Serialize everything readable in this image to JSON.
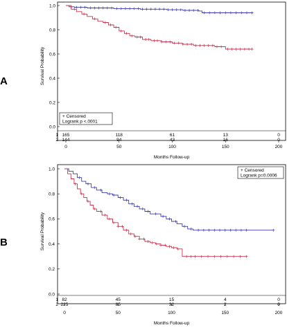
{
  "colors": {
    "group1": "#3b3bb0",
    "group2": "#c8324e",
    "frame": "#000000"
  },
  "chart_data": [
    {
      "panel": "A",
      "type": "line",
      "subtype": "kaplan-meier",
      "xlabel": "Months Follow-up",
      "ylabel": "Survival Probability",
      "xlim": [
        0,
        200
      ],
      "ylim": [
        0.0,
        1.0
      ],
      "xticks": [
        0,
        50,
        100,
        150,
        200
      ],
      "yticks": [
        "0.0",
        "0.2",
        "0.4",
        "0.6",
        "0.8",
        "1.0"
      ],
      "legend": {
        "position": "bottom-left",
        "lines": [
          "+ Censored",
          "Logrank p <.0001"
        ]
      },
      "series": [
        {
          "group": "1",
          "steps": [
            [
              0,
              1.0
            ],
            [
              3,
              0.99
            ],
            [
              8,
              0.985
            ],
            [
              20,
              0.98
            ],
            [
              45,
              0.975
            ],
            [
              70,
              0.97
            ],
            [
              95,
              0.965
            ],
            [
              110,
              0.96
            ],
            [
              125,
              0.955
            ],
            [
              128,
              0.94
            ],
            [
              175,
              0.94
            ]
          ],
          "censored": [
            5,
            10,
            14,
            18,
            23,
            27,
            31,
            35,
            39,
            43,
            48,
            52,
            56,
            60,
            64,
            68,
            72,
            76,
            80,
            84,
            88,
            92,
            96,
            100,
            104,
            108,
            112,
            116,
            120,
            124,
            130,
            135,
            140,
            145,
            150,
            155,
            160,
            165,
            170,
            175
          ]
        },
        {
          "group": "2",
          "steps": [
            [
              0,
              1.0
            ],
            [
              5,
              0.97
            ],
            [
              10,
              0.95
            ],
            [
              15,
              0.93
            ],
            [
              20,
              0.91
            ],
            [
              25,
              0.89
            ],
            [
              30,
              0.87
            ],
            [
              35,
              0.86
            ],
            [
              40,
              0.84
            ],
            [
              45,
              0.82
            ],
            [
              50,
              0.79
            ],
            [
              55,
              0.77
            ],
            [
              60,
              0.75
            ],
            [
              65,
              0.74
            ],
            [
              72,
              0.72
            ],
            [
              80,
              0.71
            ],
            [
              90,
              0.7
            ],
            [
              100,
              0.69
            ],
            [
              110,
              0.68
            ],
            [
              120,
              0.67
            ],
            [
              130,
              0.67
            ],
            [
              140,
              0.66
            ],
            [
              150,
              0.64
            ],
            [
              175,
              0.64
            ]
          ],
          "censored": [
            8,
            17,
            27,
            37,
            42,
            47,
            52,
            57,
            62,
            67,
            70,
            75,
            78,
            83,
            86,
            90,
            94,
            98,
            102,
            106,
            110,
            114,
            118,
            122,
            126,
            130,
            134,
            138,
            142,
            146,
            152,
            156,
            160,
            164,
            168,
            172,
            175
          ]
        }
      ],
      "risk_table": {
        "rows": [
          {
            "label": "1",
            "values": [
              "165",
              "118",
              "61",
              "13",
              "0"
            ]
          },
          {
            "label": "2",
            "values": [
              "144",
              "94",
              "43",
              "16",
              "0"
            ]
          }
        ]
      }
    },
    {
      "panel": "B",
      "type": "line",
      "subtype": "kaplan-meier",
      "xlabel": "Months Follow-up",
      "ylabel": "Survival Probability",
      "xlim": [
        0,
        200
      ],
      "ylim": [
        0.0,
        1.0
      ],
      "xticks": [
        0,
        50,
        100,
        150,
        200
      ],
      "yticks": [
        "0.0",
        "0.2",
        "0.4",
        "0.6",
        "0.8",
        "1.0"
      ],
      "legend": {
        "position": "top-right",
        "lines": [
          "+ Censored",
          "Logrank p=0.0006"
        ]
      },
      "series": [
        {
          "group": "1",
          "steps": [
            [
              0,
              1.0
            ],
            [
              4,
              0.98
            ],
            [
              8,
              0.96
            ],
            [
              12,
              0.93
            ],
            [
              16,
              0.9
            ],
            [
              20,
              0.88
            ],
            [
              25,
              0.85
            ],
            [
              30,
              0.83
            ],
            [
              35,
              0.81
            ],
            [
              40,
              0.8
            ],
            [
              45,
              0.79
            ],
            [
              50,
              0.77
            ],
            [
              55,
              0.75
            ],
            [
              60,
              0.72
            ],
            [
              65,
              0.7
            ],
            [
              70,
              0.68
            ],
            [
              75,
              0.66
            ],
            [
              80,
              0.64
            ],
            [
              90,
              0.62
            ],
            [
              95,
              0.6
            ],
            [
              100,
              0.58
            ],
            [
              105,
              0.56
            ],
            [
              110,
              0.54
            ],
            [
              115,
              0.52
            ],
            [
              120,
              0.51
            ],
            [
              195,
              0.51
            ]
          ],
          "censored": [
            14,
            22,
            28,
            34,
            42,
            46,
            52,
            58,
            63,
            68,
            73,
            78,
            85,
            92,
            98,
            104,
            112,
            118,
            125,
            130,
            135,
            140,
            145,
            150,
            155,
            160,
            165,
            170,
            195
          ]
        },
        {
          "group": "2",
          "steps": [
            [
              0,
              1.0
            ],
            [
              3,
              0.96
            ],
            [
              6,
              0.92
            ],
            [
              9,
              0.88
            ],
            [
              12,
              0.84
            ],
            [
              15,
              0.8
            ],
            [
              18,
              0.77
            ],
            [
              21,
              0.74
            ],
            [
              24,
              0.71
            ],
            [
              27,
              0.68
            ],
            [
              30,
              0.66
            ],
            [
              35,
              0.63
            ],
            [
              40,
              0.6
            ],
            [
              45,
              0.57
            ],
            [
              50,
              0.54
            ],
            [
              55,
              0.51
            ],
            [
              60,
              0.48
            ],
            [
              65,
              0.46
            ],
            [
              70,
              0.44
            ],
            [
              75,
              0.42
            ],
            [
              80,
              0.41
            ],
            [
              85,
              0.4
            ],
            [
              90,
              0.39
            ],
            [
              95,
              0.38
            ],
            [
              100,
              0.37
            ],
            [
              105,
              0.36
            ],
            [
              110,
              0.3
            ],
            [
              170,
              0.3
            ]
          ],
          "censored": [
            10,
            16,
            22,
            28,
            34,
            38,
            42,
            46,
            50,
            54,
            58,
            62,
            66,
            70,
            74,
            78,
            82,
            86,
            90,
            94,
            98,
            102,
            106,
            114,
            118,
            122,
            128,
            134,
            140,
            146,
            152,
            158,
            164,
            170
          ]
        }
      ],
      "risk_table": {
        "rows": [
          {
            "label": "1",
            "values": [
              "82",
              "45",
              "15",
              "4",
              "0"
            ]
          },
          {
            "label": "2",
            "values": [
              "225",
              "85",
              "32",
              "2",
              "0"
            ]
          }
        ]
      }
    }
  ]
}
